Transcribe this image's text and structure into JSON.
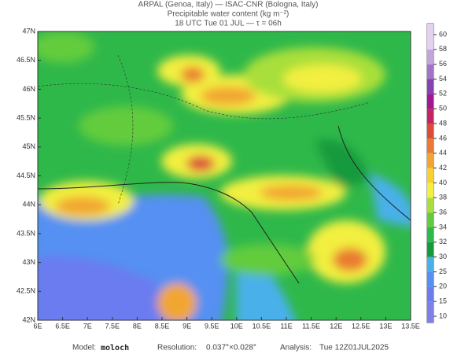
{
  "header": {
    "line1": "ARPAL (Genoa, Italy)  —  ISAC-CNR (Bologna, Italy)",
    "line2": "Precipitable water content (kg m⁻²)",
    "line3": "18 UTC Tue 01 JUL  —  τ = 06h"
  },
  "map": {
    "lat_labels": [
      "47N",
      "46.5N",
      "46N",
      "45.5N",
      "45N",
      "44.5N",
      "44N",
      "43.5N",
      "43N",
      "42.5N",
      "42N"
    ],
    "lon_labels": [
      "6E",
      "6.5E",
      "7E",
      "7.5E",
      "8E",
      "8.5E",
      "9E",
      "9.5E",
      "10E",
      "10.5E",
      "11E",
      "11.5E",
      "12E",
      "12.5E",
      "13E",
      "13.5E"
    ]
  },
  "colorbar": {
    "ticks": [
      10,
      15,
      20,
      25,
      30,
      32,
      34,
      36,
      38,
      40,
      42,
      44,
      46,
      48,
      50,
      52,
      54,
      56,
      58,
      60
    ],
    "colors": [
      "#7f7fe8",
      "#6a7cf0",
      "#5590f2",
      "#4ab0ea",
      "#169a3c",
      "#2fb84a",
      "#62cc3c",
      "#a9df3a",
      "#f2ef40",
      "#f8d032",
      "#f2a632",
      "#ea7a32",
      "#dc4a3c",
      "#c42462",
      "#a2188e",
      "#8442b2",
      "#a274c8",
      "#c2a4dc",
      "#e2d2f0"
    ]
  },
  "footer": {
    "model_label": "Model:",
    "model": "moloch",
    "resolution_label": "Resolution:",
    "resolution": "0.037°×0.028°",
    "analysis_label": "Analysis:",
    "analysis": "Tue 12Z01JUL2025"
  }
}
